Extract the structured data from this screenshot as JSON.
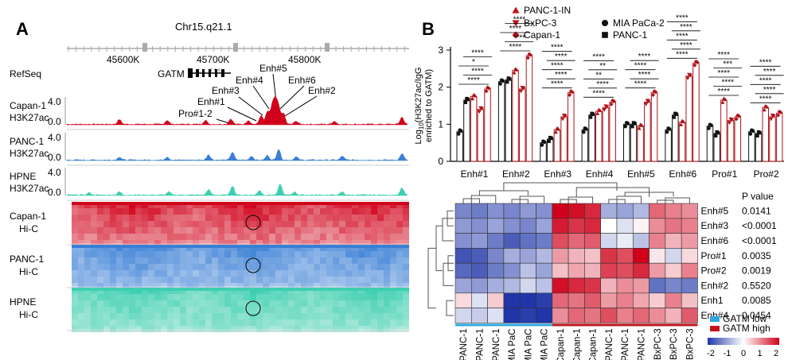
{
  "panel_a": {
    "letter": "A",
    "chrom_label": "Chr15.q21.1",
    "coords": [
      "45600K",
      "45700K",
      "45800K"
    ],
    "refseq_label": "RefSeq",
    "gene": "GATM",
    "annotations": [
      "Enh#5",
      "Enh#4",
      "Enh#6",
      "Enh#3",
      "Enh#2",
      "Enh#1",
      "Pro#1-2"
    ],
    "tracks": [
      {
        "line1": "Capan-1",
        "line2": "H3K27ac",
        "ymax": "4.0",
        "ymin": "0.0",
        "color": "#d0021b"
      },
      {
        "line1": "PANC-1",
        "line2": "H3K27ac",
        "ymax": "4.0",
        "ymin": "0.0",
        "color": "#3a7fd5"
      },
      {
        "line1": "HPNE",
        "line2": "H3K27ac",
        "ymax": "4.0",
        "ymin": "0.0",
        "color": "#3dcfb0"
      }
    ],
    "hic": [
      {
        "line1": "Capan-1",
        "line2": "Hi-C",
        "color": "#d0021b"
      },
      {
        "line1": "PANC-1",
        "line2": "Hi-C",
        "color": "#3a7fd5"
      },
      {
        "line1": "HPNE",
        "line2": "Hi-C",
        "color": "#3dcfb0"
      }
    ]
  },
  "panel_b": {
    "letter": "B",
    "legend": [
      {
        "name": "PANC-1-IN",
        "marker": "triangle-up",
        "color": "#c0141b"
      },
      {
        "name": "BxPC-3",
        "marker": "triangle-down",
        "color": "#c0141b"
      },
      {
        "name": "Capan-1",
        "marker": "diamond",
        "color": "#c0141b"
      },
      {
        "name": "MIA PaCa-2",
        "marker": "circle",
        "color": "#111111"
      },
      {
        "name": "PANC-1",
        "marker": "square",
        "color": "#111111"
      }
    ],
    "sig": [
      [
        "****",
        "*",
        "****",
        "****"
      ],
      [
        "****",
        "****",
        "****",
        "****"
      ],
      [
        "****",
        "****",
        "****",
        "****",
        "****"
      ],
      [
        "****",
        "**",
        "**",
        "****",
        "****"
      ],
      [
        "****",
        "****",
        "****",
        "****"
      ],
      [
        "****",
        "****",
        "****",
        "****",
        "****"
      ],
      [
        "****",
        "***",
        "****",
        "****",
        "****"
      ],
      [
        "****",
        "****",
        "****",
        "****",
        "****"
      ]
    ]
  },
  "heatmap": {
    "rows": [
      "Enh#5",
      "Enh#3",
      "Enh#6",
      "Pro#1",
      "Pro#2",
      "Enh#2",
      "Enh1",
      "Enh#4"
    ],
    "cols": [
      "PANC-1",
      "PANC-1",
      "PANC-1",
      "MIA PaC",
      "MIA PaC",
      "MIA PaC",
      "Capan-1",
      "Capan-1",
      "Capan-1",
      "PANC-1",
      "PANC-1",
      "PANC-1",
      "BxPC-3",
      "BxPC-3",
      "BxPC-3"
    ],
    "pvalue_header": "P value",
    "pvalues": [
      "0.0141",
      "<0.0001",
      "<0.0001",
      "0.0035",
      "0.0019",
      "0.5520",
      "0.0085",
      "0.0454"
    ],
    "group_legend": [
      "GATM low",
      "GATM high"
    ],
    "group_colors": [
      "#2fa8e0",
      "#c0141b"
    ],
    "scale_ticks": [
      "-2",
      "-1",
      "0",
      "1",
      "2"
    ],
    "matrix": [
      [
        -1.2,
        -1.3,
        -1.1,
        -1.2,
        -1.0,
        -1.1,
        2.0,
        1.9,
        1.7,
        -0.8,
        -0.9,
        -0.7,
        1.2,
        1.0,
        0.9
      ],
      [
        -1.0,
        -1.1,
        -0.9,
        -1.1,
        -1.2,
        -0.9,
        1.8,
        1.6,
        1.7,
        0.0,
        -0.3,
        0.1,
        0.9,
        1.1,
        1.0
      ],
      [
        -1.1,
        -1.0,
        -1.3,
        -1.6,
        -1.4,
        -1.3,
        1.4,
        1.2,
        1.3,
        -0.4,
        -0.2,
        -0.6,
        1.0,
        0.6,
        0.8
      ],
      [
        -1.7,
        -1.6,
        -1.2,
        -0.8,
        -0.9,
        -0.7,
        0.8,
        0.6,
        0.5,
        1.6,
        1.4,
        2.0,
        0.2,
        -0.4,
        0.3
      ],
      [
        -1.5,
        -1.6,
        -1.3,
        -1.1,
        -0.6,
        -0.9,
        0.5,
        0.7,
        0.6,
        1.5,
        1.4,
        1.7,
        0.8,
        0.4,
        1.0
      ],
      [
        -0.9,
        -1.0,
        -0.8,
        -0.7,
        -0.4,
        -0.6,
        1.9,
        1.7,
        1.6,
        0.6,
        0.9,
        0.8,
        -1.4,
        -1.2,
        -1.3
      ],
      [
        0.3,
        -0.3,
        0.4,
        -2.0,
        -2.0,
        -1.9,
        1.2,
        1.1,
        1.3,
        0.8,
        1.0,
        0.7,
        0.4,
        1.0,
        0.5
      ],
      [
        -0.4,
        -0.5,
        -0.3,
        -2.0,
        -1.9,
        -2.0,
        0.9,
        1.2,
        1.1,
        1.4,
        1.0,
        1.2,
        0.9,
        0.6,
        1.3
      ]
    ]
  },
  "chart_data": [
    {
      "type": "bar",
      "ylabel": "Log10(H3K27ac/IgG enriched to GATM)",
      "ylim": [
        0,
        3
      ],
      "yticks": [
        "0",
        "1",
        "2",
        "3"
      ],
      "categories": [
        "Enh#1",
        "Enh#2",
        "Enh#3",
        "Enh#4",
        "Enh#5",
        "Enh#6",
        "Pro#1",
        "Pro#2"
      ],
      "series": [
        {
          "name": "MIA PaCa-2",
          "values": [
            0.8,
            2.15,
            0.5,
            0.85,
            1.0,
            0.85,
            0.95,
            0.8
          ]
        },
        {
          "name": "PANC-1",
          "values": [
            1.65,
            2.2,
            0.6,
            1.25,
            1.0,
            1.25,
            0.75,
            0.75
          ]
        },
        {
          "name": "PANC-1-IN",
          "values": [
            1.75,
            2.45,
            0.85,
            1.35,
            0.95,
            1.05,
            1.65,
            1.45
          ]
        },
        {
          "name": "BxPC-3",
          "values": [
            1.4,
            1.95,
            1.2,
            1.45,
            1.6,
            2.3,
            1.1,
            1.2
          ]
        },
        {
          "name": "Capan-1",
          "values": [
            1.95,
            2.85,
            1.85,
            1.6,
            1.85,
            2.65,
            1.2,
            1.3
          ]
        }
      ],
      "legend_placement": "top"
    },
    {
      "type": "heatmap",
      "source": "heatmap",
      "colorscale": [
        "#1f35a8",
        "#ffffff",
        "#d0021b"
      ],
      "range": [
        -2,
        2
      ]
    }
  ]
}
